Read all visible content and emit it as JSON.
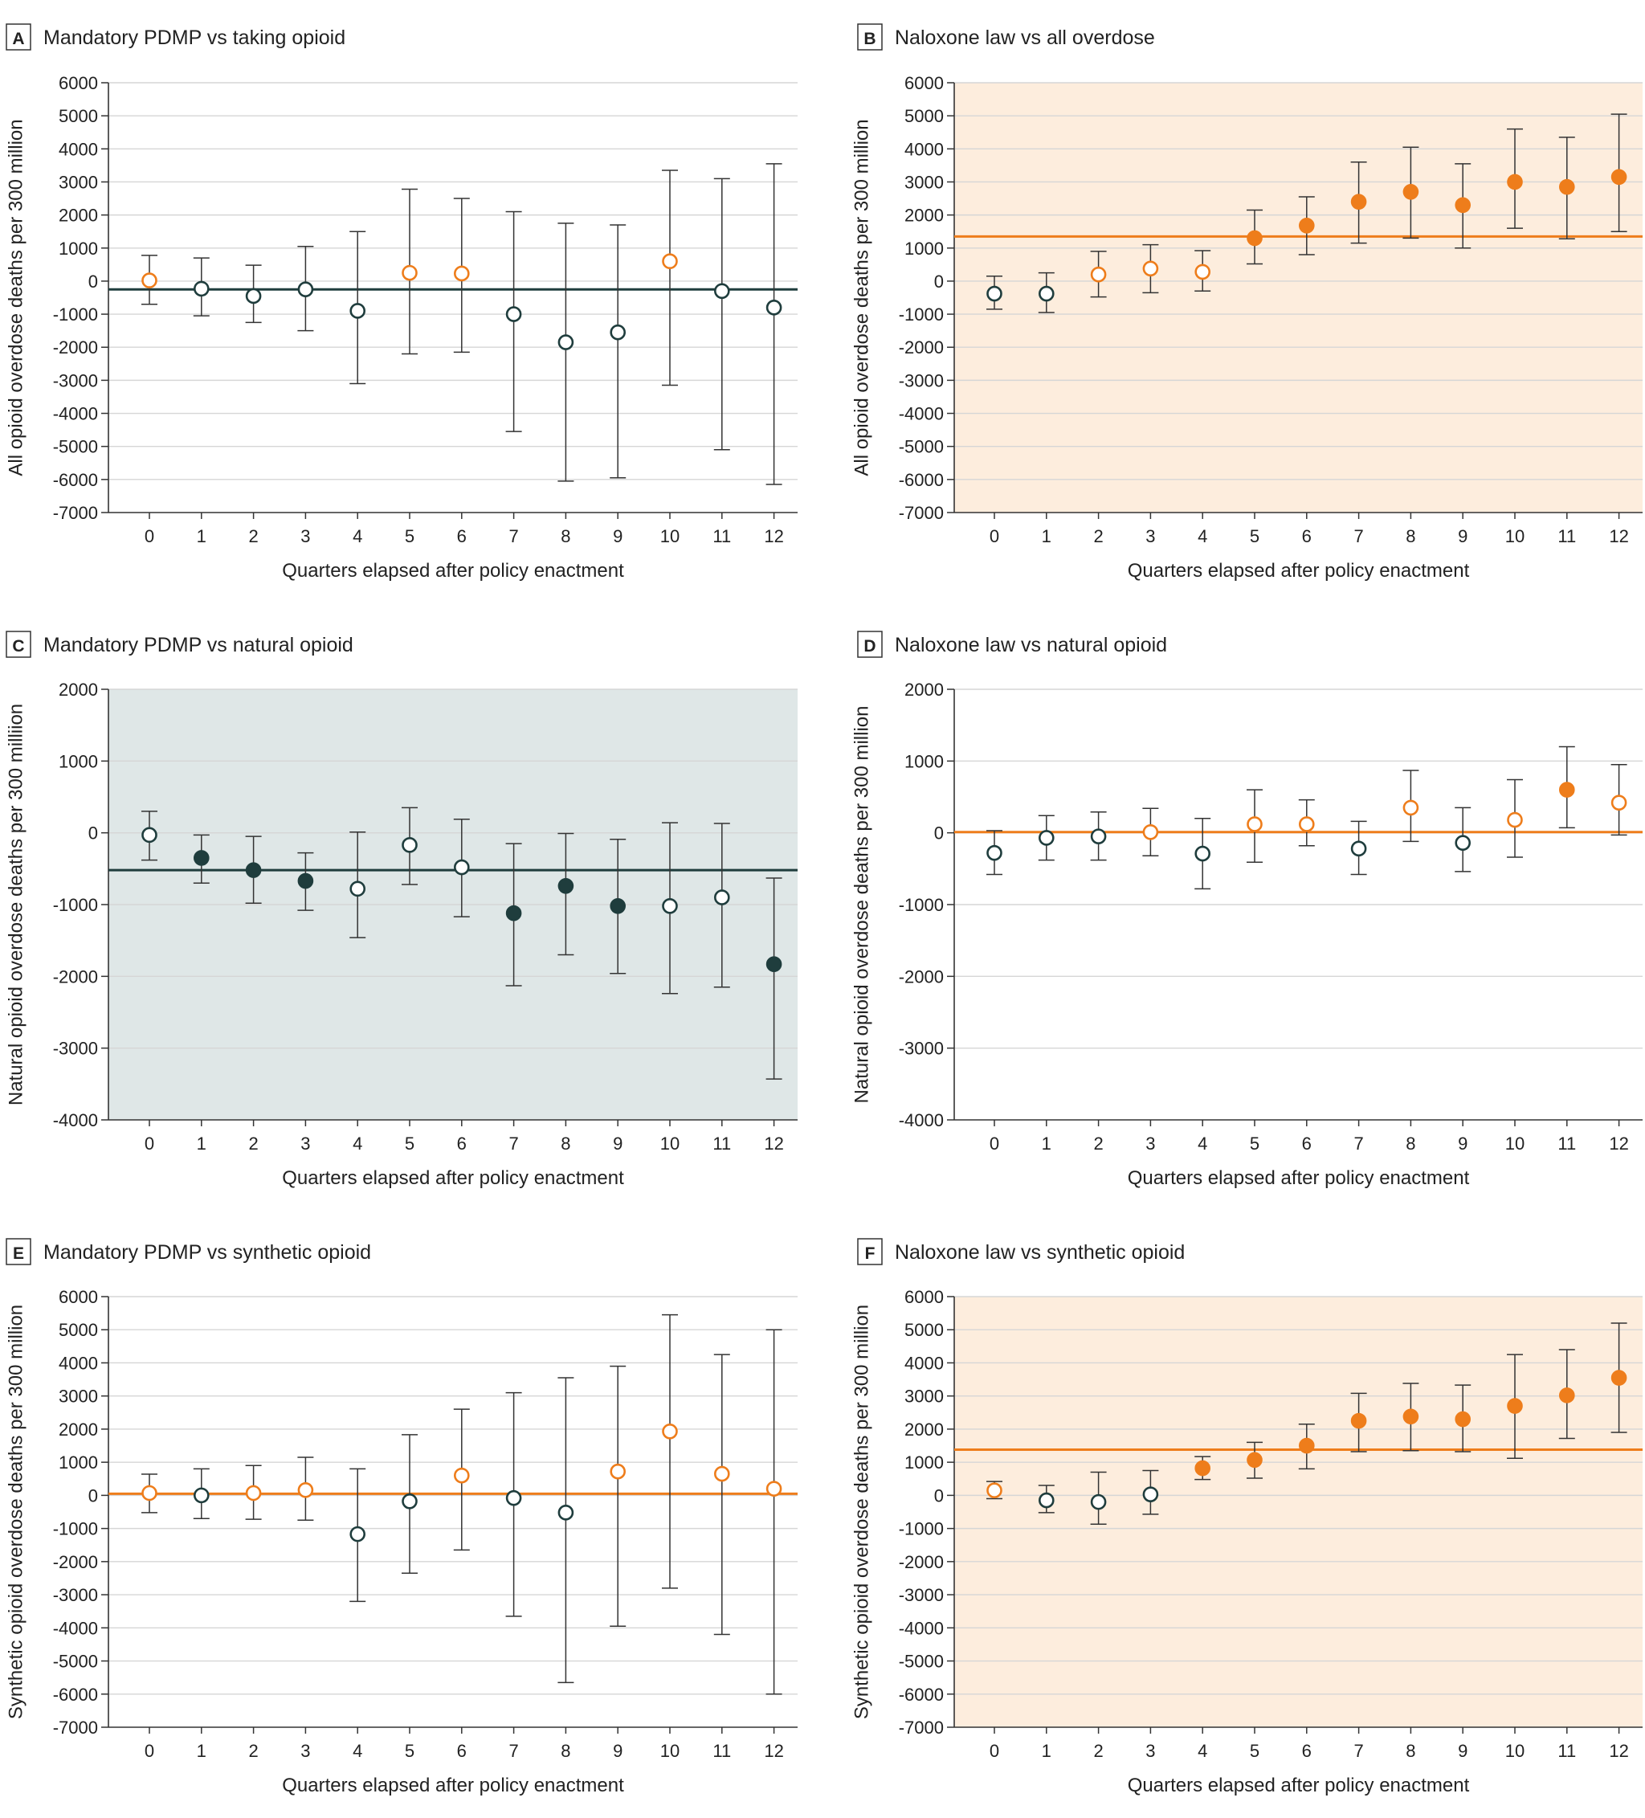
{
  "colors": {
    "dark": "#1f3d3d",
    "orange": "#ee7d1b",
    "shade_orange": "#fdeddd",
    "shade_teal": "#dfe7e7",
    "grid": "#d6d6d6",
    "axis": "#333333"
  },
  "chart_data": [
    {
      "id": "A",
      "panel_letter": "A",
      "title": "Mandatory PDMP vs taking opioid",
      "type": "scatter",
      "xlabel": "Quarters elapsed after policy enactment",
      "ylabel": "All opioid overdose deaths per 300 million",
      "ylim": [
        -7000,
        6000
      ],
      "yticks": [
        "6000",
        "5000",
        "4000",
        "3000",
        "2000",
        "1000",
        "0",
        "-1000",
        "-2000",
        "-3000",
        "-4000",
        "-5000",
        "-6000",
        "-7000"
      ],
      "xticks": [
        "0",
        "1",
        "2",
        "3",
        "4",
        "5",
        "6",
        "7",
        "8",
        "9",
        "10",
        "11",
        "12"
      ],
      "background": "none",
      "reference_line": {
        "value": -250,
        "color": "dark"
      },
      "points": [
        {
          "x": 0,
          "y": 20,
          "lower": -700,
          "upper": 780,
          "marker": "open-orange"
        },
        {
          "x": 1,
          "y": -230,
          "lower": -1050,
          "upper": 700,
          "marker": "open-dark"
        },
        {
          "x": 2,
          "y": -450,
          "lower": -1250,
          "upper": 480,
          "marker": "open-dark"
        },
        {
          "x": 3,
          "y": -250,
          "lower": -1500,
          "upper": 1050,
          "marker": "open-dark"
        },
        {
          "x": 4,
          "y": -900,
          "lower": -3100,
          "upper": 1500,
          "marker": "open-dark"
        },
        {
          "x": 5,
          "y": 250,
          "lower": -2200,
          "upper": 2780,
          "marker": "open-orange"
        },
        {
          "x": 6,
          "y": 230,
          "lower": -2150,
          "upper": 2500,
          "marker": "open-orange"
        },
        {
          "x": 7,
          "y": -1000,
          "lower": -4550,
          "upper": 2100,
          "marker": "open-dark"
        },
        {
          "x": 8,
          "y": -1850,
          "lower": -6050,
          "upper": 1750,
          "marker": "open-dark"
        },
        {
          "x": 9,
          "y": -1550,
          "lower": -5950,
          "upper": 1700,
          "marker": "open-dark"
        },
        {
          "x": 10,
          "y": 600,
          "lower": -3150,
          "upper": 3350,
          "marker": "open-orange"
        },
        {
          "x": 11,
          "y": -300,
          "lower": -5100,
          "upper": 3100,
          "marker": "open-dark"
        },
        {
          "x": 12,
          "y": -800,
          "lower": -6150,
          "upper": 3550,
          "marker": "open-dark"
        }
      ]
    },
    {
      "id": "B",
      "panel_letter": "B",
      "title": "Naloxone law vs all overdose",
      "type": "scatter",
      "xlabel": "Quarters elapsed after policy enactment",
      "ylabel": "All opioid overdose deaths per 300 million",
      "ylim": [
        -7000,
        6000
      ],
      "yticks": [
        "6000",
        "5000",
        "4000",
        "3000",
        "2000",
        "1000",
        "0",
        "-1000",
        "-2000",
        "-3000",
        "-4000",
        "-5000",
        "-6000",
        "-7000"
      ],
      "xticks": [
        "0",
        "1",
        "2",
        "3",
        "4",
        "5",
        "6",
        "7",
        "8",
        "9",
        "10",
        "11",
        "12"
      ],
      "background": "orange",
      "reference_line": {
        "value": 1350,
        "color": "orange"
      },
      "points": [
        {
          "x": 0,
          "y": -380,
          "lower": -850,
          "upper": 150,
          "marker": "open-dark"
        },
        {
          "x": 1,
          "y": -380,
          "lower": -950,
          "upper": 250,
          "marker": "open-dark"
        },
        {
          "x": 2,
          "y": 200,
          "lower": -480,
          "upper": 900,
          "marker": "open-orange"
        },
        {
          "x": 3,
          "y": 380,
          "lower": -350,
          "upper": 1100,
          "marker": "open-orange"
        },
        {
          "x": 4,
          "y": 280,
          "lower": -300,
          "upper": 920,
          "marker": "open-orange"
        },
        {
          "x": 5,
          "y": 1300,
          "lower": 520,
          "upper": 2150,
          "marker": "filled-orange"
        },
        {
          "x": 6,
          "y": 1680,
          "lower": 800,
          "upper": 2550,
          "marker": "filled-orange"
        },
        {
          "x": 7,
          "y": 2400,
          "lower": 1150,
          "upper": 3600,
          "marker": "filled-orange"
        },
        {
          "x": 8,
          "y": 2700,
          "lower": 1300,
          "upper": 4050,
          "marker": "filled-orange"
        },
        {
          "x": 9,
          "y": 2300,
          "lower": 1000,
          "upper": 3550,
          "marker": "filled-orange"
        },
        {
          "x": 10,
          "y": 3000,
          "lower": 1600,
          "upper": 4600,
          "marker": "filled-orange"
        },
        {
          "x": 11,
          "y": 2850,
          "lower": 1280,
          "upper": 4350,
          "marker": "filled-orange"
        },
        {
          "x": 12,
          "y": 3150,
          "lower": 1500,
          "upper": 5050,
          "marker": "filled-orange"
        }
      ]
    },
    {
      "id": "C",
      "panel_letter": "C",
      "title": "Mandatory PDMP vs natural opioid",
      "type": "scatter",
      "xlabel": "Quarters elapsed after policy enactment",
      "ylabel": "Natural opioid overdose deaths per 300 milliion",
      "ylim": [
        -4000,
        2000
      ],
      "yticks": [
        "2000",
        "1000",
        "0",
        "-1000",
        "-2000",
        "-3000",
        "-4000"
      ],
      "xticks": [
        "0",
        "1",
        "2",
        "3",
        "4",
        "5",
        "6",
        "7",
        "8",
        "9",
        "10",
        "11",
        "12"
      ],
      "background": "teal",
      "reference_line": {
        "value": -520,
        "color": "dark"
      },
      "points": [
        {
          "x": 0,
          "y": -30,
          "lower": -380,
          "upper": 300,
          "marker": "open-dark"
        },
        {
          "x": 1,
          "y": -350,
          "lower": -700,
          "upper": -30,
          "marker": "filled-dark"
        },
        {
          "x": 2,
          "y": -520,
          "lower": -980,
          "upper": -50,
          "marker": "filled-dark"
        },
        {
          "x": 3,
          "y": -670,
          "lower": -1080,
          "upper": -280,
          "marker": "filled-dark"
        },
        {
          "x": 4,
          "y": -780,
          "lower": -1460,
          "upper": 10,
          "marker": "open-dark"
        },
        {
          "x": 5,
          "y": -170,
          "lower": -720,
          "upper": 350,
          "marker": "open-dark"
        },
        {
          "x": 6,
          "y": -480,
          "lower": -1170,
          "upper": 190,
          "marker": "open-dark"
        },
        {
          "x": 7,
          "y": -1120,
          "lower": -2130,
          "upper": -150,
          "marker": "filled-dark"
        },
        {
          "x": 8,
          "y": -740,
          "lower": -1700,
          "upper": -10,
          "marker": "filled-dark"
        },
        {
          "x": 9,
          "y": -1020,
          "lower": -1960,
          "upper": -90,
          "marker": "filled-dark"
        },
        {
          "x": 10,
          "y": -1020,
          "lower": -2240,
          "upper": 140,
          "marker": "open-dark"
        },
        {
          "x": 11,
          "y": -900,
          "lower": -2150,
          "upper": 130,
          "marker": "open-dark"
        },
        {
          "x": 12,
          "y": -1830,
          "lower": -3430,
          "upper": -630,
          "marker": "filled-dark"
        }
      ]
    },
    {
      "id": "D",
      "panel_letter": "D",
      "title": "Naloxone law vs natural opioid",
      "type": "scatter",
      "xlabel": "Quarters elapsed after policy enactment",
      "ylabel": "Natural opioid overdose deaths per 300 million",
      "ylim": [
        -4000,
        2000
      ],
      "yticks": [
        "2000",
        "1000",
        "0",
        "-1000",
        "-2000",
        "-3000",
        "-4000"
      ],
      "xticks": [
        "0",
        "1",
        "2",
        "3",
        "4",
        "5",
        "6",
        "7",
        "8",
        "9",
        "10",
        "11",
        "12"
      ],
      "background": "none",
      "reference_line": {
        "value": 10,
        "color": "orange"
      },
      "points": [
        {
          "x": 0,
          "y": -280,
          "lower": -580,
          "upper": 30,
          "marker": "open-dark"
        },
        {
          "x": 1,
          "y": -70,
          "lower": -380,
          "upper": 240,
          "marker": "open-dark"
        },
        {
          "x": 2,
          "y": -50,
          "lower": -380,
          "upper": 290,
          "marker": "open-dark"
        },
        {
          "x": 3,
          "y": 10,
          "lower": -320,
          "upper": 340,
          "marker": "open-orange"
        },
        {
          "x": 4,
          "y": -290,
          "lower": -780,
          "upper": 200,
          "marker": "open-dark"
        },
        {
          "x": 5,
          "y": 120,
          "lower": -410,
          "upper": 600,
          "marker": "open-orange"
        },
        {
          "x": 6,
          "y": 120,
          "lower": -180,
          "upper": 460,
          "marker": "open-orange"
        },
        {
          "x": 7,
          "y": -220,
          "lower": -580,
          "upper": 160,
          "marker": "open-dark"
        },
        {
          "x": 8,
          "y": 350,
          "lower": -120,
          "upper": 870,
          "marker": "open-orange"
        },
        {
          "x": 9,
          "y": -140,
          "lower": -540,
          "upper": 350,
          "marker": "open-dark"
        },
        {
          "x": 10,
          "y": 180,
          "lower": -340,
          "upper": 740,
          "marker": "open-orange"
        },
        {
          "x": 11,
          "y": 600,
          "lower": 70,
          "upper": 1200,
          "marker": "filled-orange"
        },
        {
          "x": 12,
          "y": 420,
          "lower": -30,
          "upper": 950,
          "marker": "open-orange"
        }
      ]
    },
    {
      "id": "E",
      "panel_letter": "E",
      "title": "Mandatory PDMP vs synthetic opioid",
      "type": "scatter",
      "xlabel": "Quarters elapsed after policy enactment",
      "ylabel": "Synthetic opioid overdose deaths per 300 million",
      "ylim": [
        -7000,
        6000
      ],
      "yticks": [
        "6000",
        "5000",
        "4000",
        "3000",
        "2000",
        "1000",
        "0",
        "-1000",
        "-2000",
        "-3000",
        "-4000",
        "-5000",
        "-6000",
        "-7000"
      ],
      "xticks": [
        "0",
        "1",
        "2",
        "3",
        "4",
        "5",
        "6",
        "7",
        "8",
        "9",
        "10",
        "11",
        "12"
      ],
      "background": "none",
      "reference_line": {
        "value": 50,
        "color": "orange"
      },
      "points": [
        {
          "x": 0,
          "y": 70,
          "lower": -520,
          "upper": 640,
          "marker": "open-orange"
        },
        {
          "x": 1,
          "y": 0,
          "lower": -700,
          "upper": 800,
          "marker": "open-dark"
        },
        {
          "x": 2,
          "y": 70,
          "lower": -720,
          "upper": 900,
          "marker": "open-orange"
        },
        {
          "x": 3,
          "y": 160,
          "lower": -750,
          "upper": 1150,
          "marker": "open-orange"
        },
        {
          "x": 4,
          "y": -1170,
          "lower": -3200,
          "upper": 800,
          "marker": "open-dark"
        },
        {
          "x": 5,
          "y": -180,
          "lower": -2350,
          "upper": 1830,
          "marker": "open-dark"
        },
        {
          "x": 6,
          "y": 600,
          "lower": -1650,
          "upper": 2600,
          "marker": "open-orange"
        },
        {
          "x": 7,
          "y": -80,
          "lower": -3650,
          "upper": 3100,
          "marker": "open-dark"
        },
        {
          "x": 8,
          "y": -520,
          "lower": -5650,
          "upper": 3550,
          "marker": "open-dark"
        },
        {
          "x": 9,
          "y": 720,
          "lower": -3950,
          "upper": 3900,
          "marker": "open-orange"
        },
        {
          "x": 10,
          "y": 1930,
          "lower": -2800,
          "upper": 5450,
          "marker": "open-orange"
        },
        {
          "x": 11,
          "y": 650,
          "lower": -4200,
          "upper": 4250,
          "marker": "open-orange"
        },
        {
          "x": 12,
          "y": 200,
          "lower": -6000,
          "upper": 5000,
          "marker": "open-orange"
        }
      ]
    },
    {
      "id": "F",
      "panel_letter": "F",
      "title": "Naloxone law vs synthetic opioid",
      "type": "scatter",
      "xlabel": "Quarters elapsed after policy enactment",
      "ylabel": "Synthetic opioid overdose deaths per 300 million",
      "ylim": [
        -7000,
        6000
      ],
      "yticks": [
        "6000",
        "5000",
        "4000",
        "3000",
        "2000",
        "1000",
        "0",
        "-1000",
        "-2000",
        "-3000",
        "-4000",
        "-5000",
        "-6000",
        "-7000"
      ],
      "xticks": [
        "0",
        "1",
        "2",
        "3",
        "4",
        "5",
        "6",
        "7",
        "8",
        "9",
        "10",
        "11",
        "12"
      ],
      "background": "orange",
      "reference_line": {
        "value": 1380,
        "color": "orange"
      },
      "points": [
        {
          "x": 0,
          "y": 150,
          "lower": -100,
          "upper": 420,
          "marker": "open-orange"
        },
        {
          "x": 1,
          "y": -150,
          "lower": -520,
          "upper": 300,
          "marker": "open-dark"
        },
        {
          "x": 2,
          "y": -200,
          "lower": -870,
          "upper": 700,
          "marker": "open-dark"
        },
        {
          "x": 3,
          "y": 30,
          "lower": -570,
          "upper": 750,
          "marker": "open-dark"
        },
        {
          "x": 4,
          "y": 820,
          "lower": 480,
          "upper": 1170,
          "marker": "filled-orange"
        },
        {
          "x": 5,
          "y": 1070,
          "lower": 520,
          "upper": 1600,
          "marker": "filled-orange"
        },
        {
          "x": 6,
          "y": 1500,
          "lower": 800,
          "upper": 2150,
          "marker": "filled-orange"
        },
        {
          "x": 7,
          "y": 2250,
          "lower": 1320,
          "upper": 3080,
          "marker": "filled-orange"
        },
        {
          "x": 8,
          "y": 2380,
          "lower": 1350,
          "upper": 3380,
          "marker": "filled-orange"
        },
        {
          "x": 9,
          "y": 2300,
          "lower": 1320,
          "upper": 3330,
          "marker": "filled-orange"
        },
        {
          "x": 10,
          "y": 2700,
          "lower": 1120,
          "upper": 4250,
          "marker": "filled-orange"
        },
        {
          "x": 11,
          "y": 3020,
          "lower": 1720,
          "upper": 4400,
          "marker": "filled-orange"
        },
        {
          "x": 12,
          "y": 3550,
          "lower": 1900,
          "upper": 5200,
          "marker": "filled-orange"
        }
      ]
    }
  ]
}
